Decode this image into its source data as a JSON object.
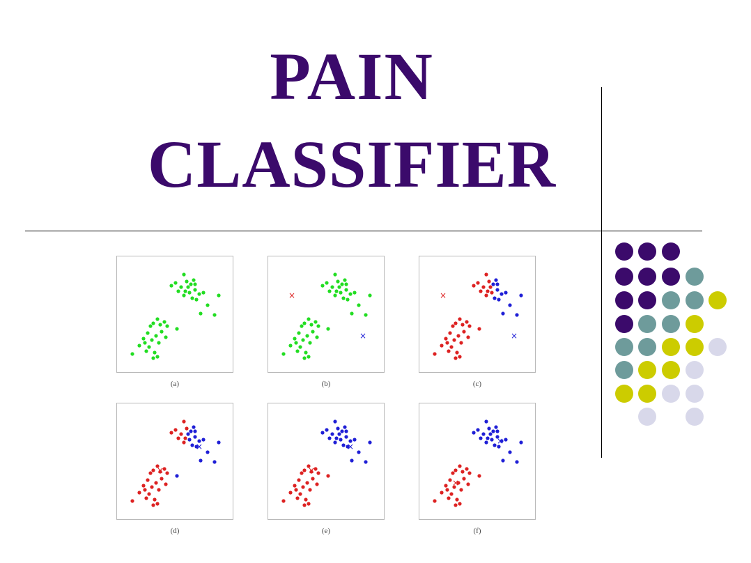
{
  "title": {
    "line1": "PAIN",
    "line2": "CLASSIFIER"
  },
  "figure": {
    "labels": [
      "(a)",
      "(b)",
      "(c)",
      "(d)",
      "(e)",
      "(f)"
    ],
    "colors": {
      "green": "#22dd22",
      "red": "#dd2222",
      "blue": "#1f1fd6"
    }
  },
  "decor": {
    "colors": {
      "purple": "#3b0a6b",
      "teal": "#6e9b9b",
      "olive": "#cccc00",
      "lavender": "#d8d8ea"
    }
  }
}
